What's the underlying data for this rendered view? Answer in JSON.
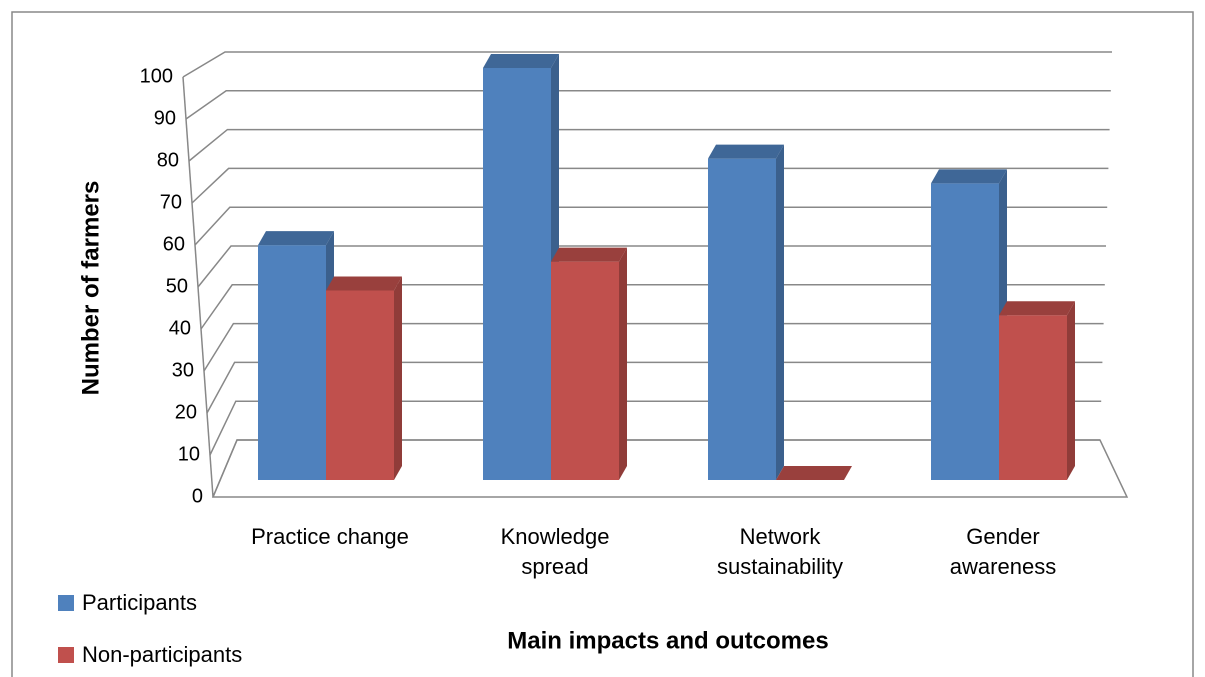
{
  "chart_data": {
    "type": "bar3d",
    "xlabel": "Main impacts and outcomes",
    "ylabel": "Number of farmers",
    "categories": [
      "Practice change",
      "Knowledge spread",
      "Network sustainability",
      "Gender awareness"
    ],
    "series": [
      {
        "name": "Participants",
        "color": "#4f81bd",
        "values": [
          57,
          100,
          78,
          72
        ]
      },
      {
        "name": "Non-participants",
        "color": "#c0504d",
        "values": [
          46,
          53,
          0,
          40
        ]
      }
    ],
    "ylim": [
      0,
      100
    ],
    "yticks": [
      0,
      10,
      20,
      30,
      40,
      50,
      60,
      70,
      80,
      90,
      100
    ],
    "grid": true,
    "legend": "bottom-left"
  }
}
